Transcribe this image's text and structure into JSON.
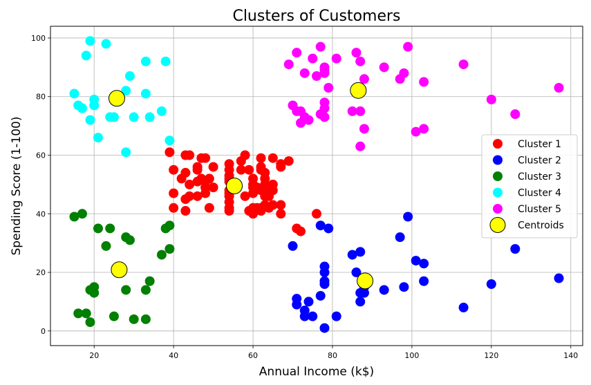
{
  "chart_data": {
    "type": "scatter",
    "title": "Clusters of Customers",
    "xlabel": "Annual Income (k$)",
    "ylabel": "Spending Score (1-100)",
    "xlim": [
      9,
      143
    ],
    "ylim": [
      -5,
      104
    ],
    "xticks": [
      20,
      40,
      60,
      80,
      100,
      120,
      140
    ],
    "yticks": [
      0,
      20,
      40,
      60,
      80,
      100
    ],
    "grid": true,
    "legend_position": "center-right",
    "series": [
      {
        "name": "Cluster 1",
        "color": "#ff0000",
        "points": [
          [
            39,
            61
          ],
          [
            40,
            55
          ],
          [
            40,
            47
          ],
          [
            40,
            42
          ],
          [
            42,
            52
          ],
          [
            43,
            60
          ],
          [
            43,
            54
          ],
          [
            43,
            45
          ],
          [
            43,
            41
          ],
          [
            44,
            60
          ],
          [
            44,
            50
          ],
          [
            44,
            46
          ],
          [
            46,
            56
          ],
          [
            46,
            55
          ],
          [
            46,
            51
          ],
          [
            46,
            46
          ],
          [
            47,
            52
          ],
          [
            47,
            59
          ],
          [
            48,
            59
          ],
          [
            48,
            51
          ],
          [
            48,
            47
          ],
          [
            48,
            49
          ],
          [
            49,
            42
          ],
          [
            49,
            52
          ],
          [
            50,
            56
          ],
          [
            50,
            49
          ],
          [
            54,
            57
          ],
          [
            54,
            55
          ],
          [
            54,
            53
          ],
          [
            54,
            52
          ],
          [
            54,
            51
          ],
          [
            54,
            48
          ],
          [
            54,
            47
          ],
          [
            54,
            46
          ],
          [
            54,
            44
          ],
          [
            54,
            42
          ],
          [
            54,
            41
          ],
          [
            57,
            58
          ],
          [
            57,
            55
          ],
          [
            58,
            60
          ],
          [
            58,
            46
          ],
          [
            59,
            55
          ],
          [
            59,
            41
          ],
          [
            60,
            49
          ],
          [
            60,
            40
          ],
          [
            60,
            42
          ],
          [
            60,
            52
          ],
          [
            60,
            47
          ],
          [
            60,
            50
          ],
          [
            61,
            42
          ],
          [
            61,
            49
          ],
          [
            62,
            41
          ],
          [
            62,
            48
          ],
          [
            62,
            59
          ],
          [
            62,
            55
          ],
          [
            62,
            56
          ],
          [
            62,
            42
          ],
          [
            63,
            50
          ],
          [
            63,
            46
          ],
          [
            63,
            43
          ],
          [
            63,
            48
          ],
          [
            63,
            52
          ],
          [
            63,
            54
          ],
          [
            64,
            42
          ],
          [
            64,
            46
          ],
          [
            65,
            48
          ],
          [
            65,
            50
          ],
          [
            65,
            43
          ],
          [
            65,
            59
          ],
          [
            67,
            43
          ],
          [
            67,
            57
          ],
          [
            67,
            56
          ],
          [
            67,
            40
          ],
          [
            69,
            58
          ],
          [
            71,
            35
          ],
          [
            72,
            34
          ],
          [
            76,
            40
          ]
        ]
      },
      {
        "name": "Cluster 2",
        "color": "#0000ff",
        "points": [
          [
            70,
            29
          ],
          [
            71,
            11
          ],
          [
            71,
            9
          ],
          [
            73,
            5
          ],
          [
            73,
            7
          ],
          [
            74,
            10
          ],
          [
            75,
            5
          ],
          [
            77,
            12
          ],
          [
            77,
            36
          ],
          [
            78,
            22
          ],
          [
            78,
            17
          ],
          [
            78,
            20
          ],
          [
            78,
            16
          ],
          [
            78,
            1
          ],
          [
            79,
            35
          ],
          [
            81,
            5
          ],
          [
            85,
            26
          ],
          [
            86,
            20
          ],
          [
            87,
            27
          ],
          [
            87,
            13
          ],
          [
            87,
            10
          ],
          [
            88,
            13
          ],
          [
            88,
            15
          ],
          [
            93,
            14
          ],
          [
            97,
            32
          ],
          [
            98,
            15
          ],
          [
            99,
            39
          ],
          [
            101,
            24
          ],
          [
            103,
            17
          ],
          [
            103,
            23
          ],
          [
            113,
            8
          ],
          [
            120,
            16
          ],
          [
            126,
            28
          ],
          [
            137,
            18
          ]
        ]
      },
      {
        "name": "Cluster 3",
        "color": "#008000",
        "points": [
          [
            15,
            39
          ],
          [
            16,
            6
          ],
          [
            17,
            40
          ],
          [
            18,
            6
          ],
          [
            19,
            3
          ],
          [
            19,
            14
          ],
          [
            20,
            15
          ],
          [
            20,
            13
          ],
          [
            21,
            35
          ],
          [
            23,
            29
          ],
          [
            24,
            35
          ],
          [
            25,
            5
          ],
          [
            28,
            14
          ],
          [
            28,
            32
          ],
          [
            29,
            31
          ],
          [
            30,
            4
          ],
          [
            33,
            4
          ],
          [
            33,
            14
          ],
          [
            34,
            17
          ],
          [
            37,
            26
          ],
          [
            38,
            35
          ],
          [
            39,
            36
          ],
          [
            39,
            28
          ]
        ]
      },
      {
        "name": "Cluster 4",
        "color": "#00ffff",
        "points": [
          [
            15,
            81
          ],
          [
            16,
            77
          ],
          [
            17,
            76
          ],
          [
            18,
            94
          ],
          [
            19,
            72
          ],
          [
            19,
            99
          ],
          [
            20,
            77
          ],
          [
            20,
            79
          ],
          [
            21,
            66
          ],
          [
            23,
            98
          ],
          [
            24,
            73
          ],
          [
            25,
            73
          ],
          [
            28,
            82
          ],
          [
            28,
            61
          ],
          [
            29,
            87
          ],
          [
            30,
            73
          ],
          [
            33,
            92
          ],
          [
            33,
            81
          ],
          [
            34,
            73
          ],
          [
            37,
            75
          ],
          [
            38,
            92
          ],
          [
            39,
            65
          ]
        ]
      },
      {
        "name": "Cluster 5",
        "color": "#ff00ff",
        "points": [
          [
            69,
            91
          ],
          [
            70,
            77
          ],
          [
            71,
            95
          ],
          [
            71,
            75
          ],
          [
            72,
            75
          ],
          [
            72,
            71
          ],
          [
            73,
            88
          ],
          [
            73,
            73
          ],
          [
            74,
            72
          ],
          [
            75,
            93
          ],
          [
            76,
            87
          ],
          [
            77,
            97
          ],
          [
            77,
            74
          ],
          [
            78,
            90
          ],
          [
            78,
            88
          ],
          [
            78,
            76
          ],
          [
            78,
            89
          ],
          [
            78,
            78
          ],
          [
            78,
            73
          ],
          [
            79,
            83
          ],
          [
            81,
            93
          ],
          [
            85,
            75
          ],
          [
            86,
            95
          ],
          [
            87,
            63
          ],
          [
            87,
            75
          ],
          [
            87,
            92
          ],
          [
            88,
            86
          ],
          [
            88,
            69
          ],
          [
            93,
            90
          ],
          [
            97,
            86
          ],
          [
            98,
            88
          ],
          [
            99,
            97
          ],
          [
            101,
            68
          ],
          [
            103,
            85
          ],
          [
            103,
            69
          ],
          [
            113,
            91
          ],
          [
            120,
            79
          ],
          [
            126,
            74
          ],
          [
            137,
            83
          ]
        ]
      },
      {
        "name": "Centroids",
        "color": "#ffff00",
        "edgecolor": "#000000",
        "points": [
          [
            55.3,
            49.5
          ],
          [
            86.5,
            82.1
          ],
          [
            88.2,
            17.1
          ],
          [
            26.3,
            20.9
          ],
          [
            25.7,
            79.4
          ]
        ]
      }
    ]
  }
}
